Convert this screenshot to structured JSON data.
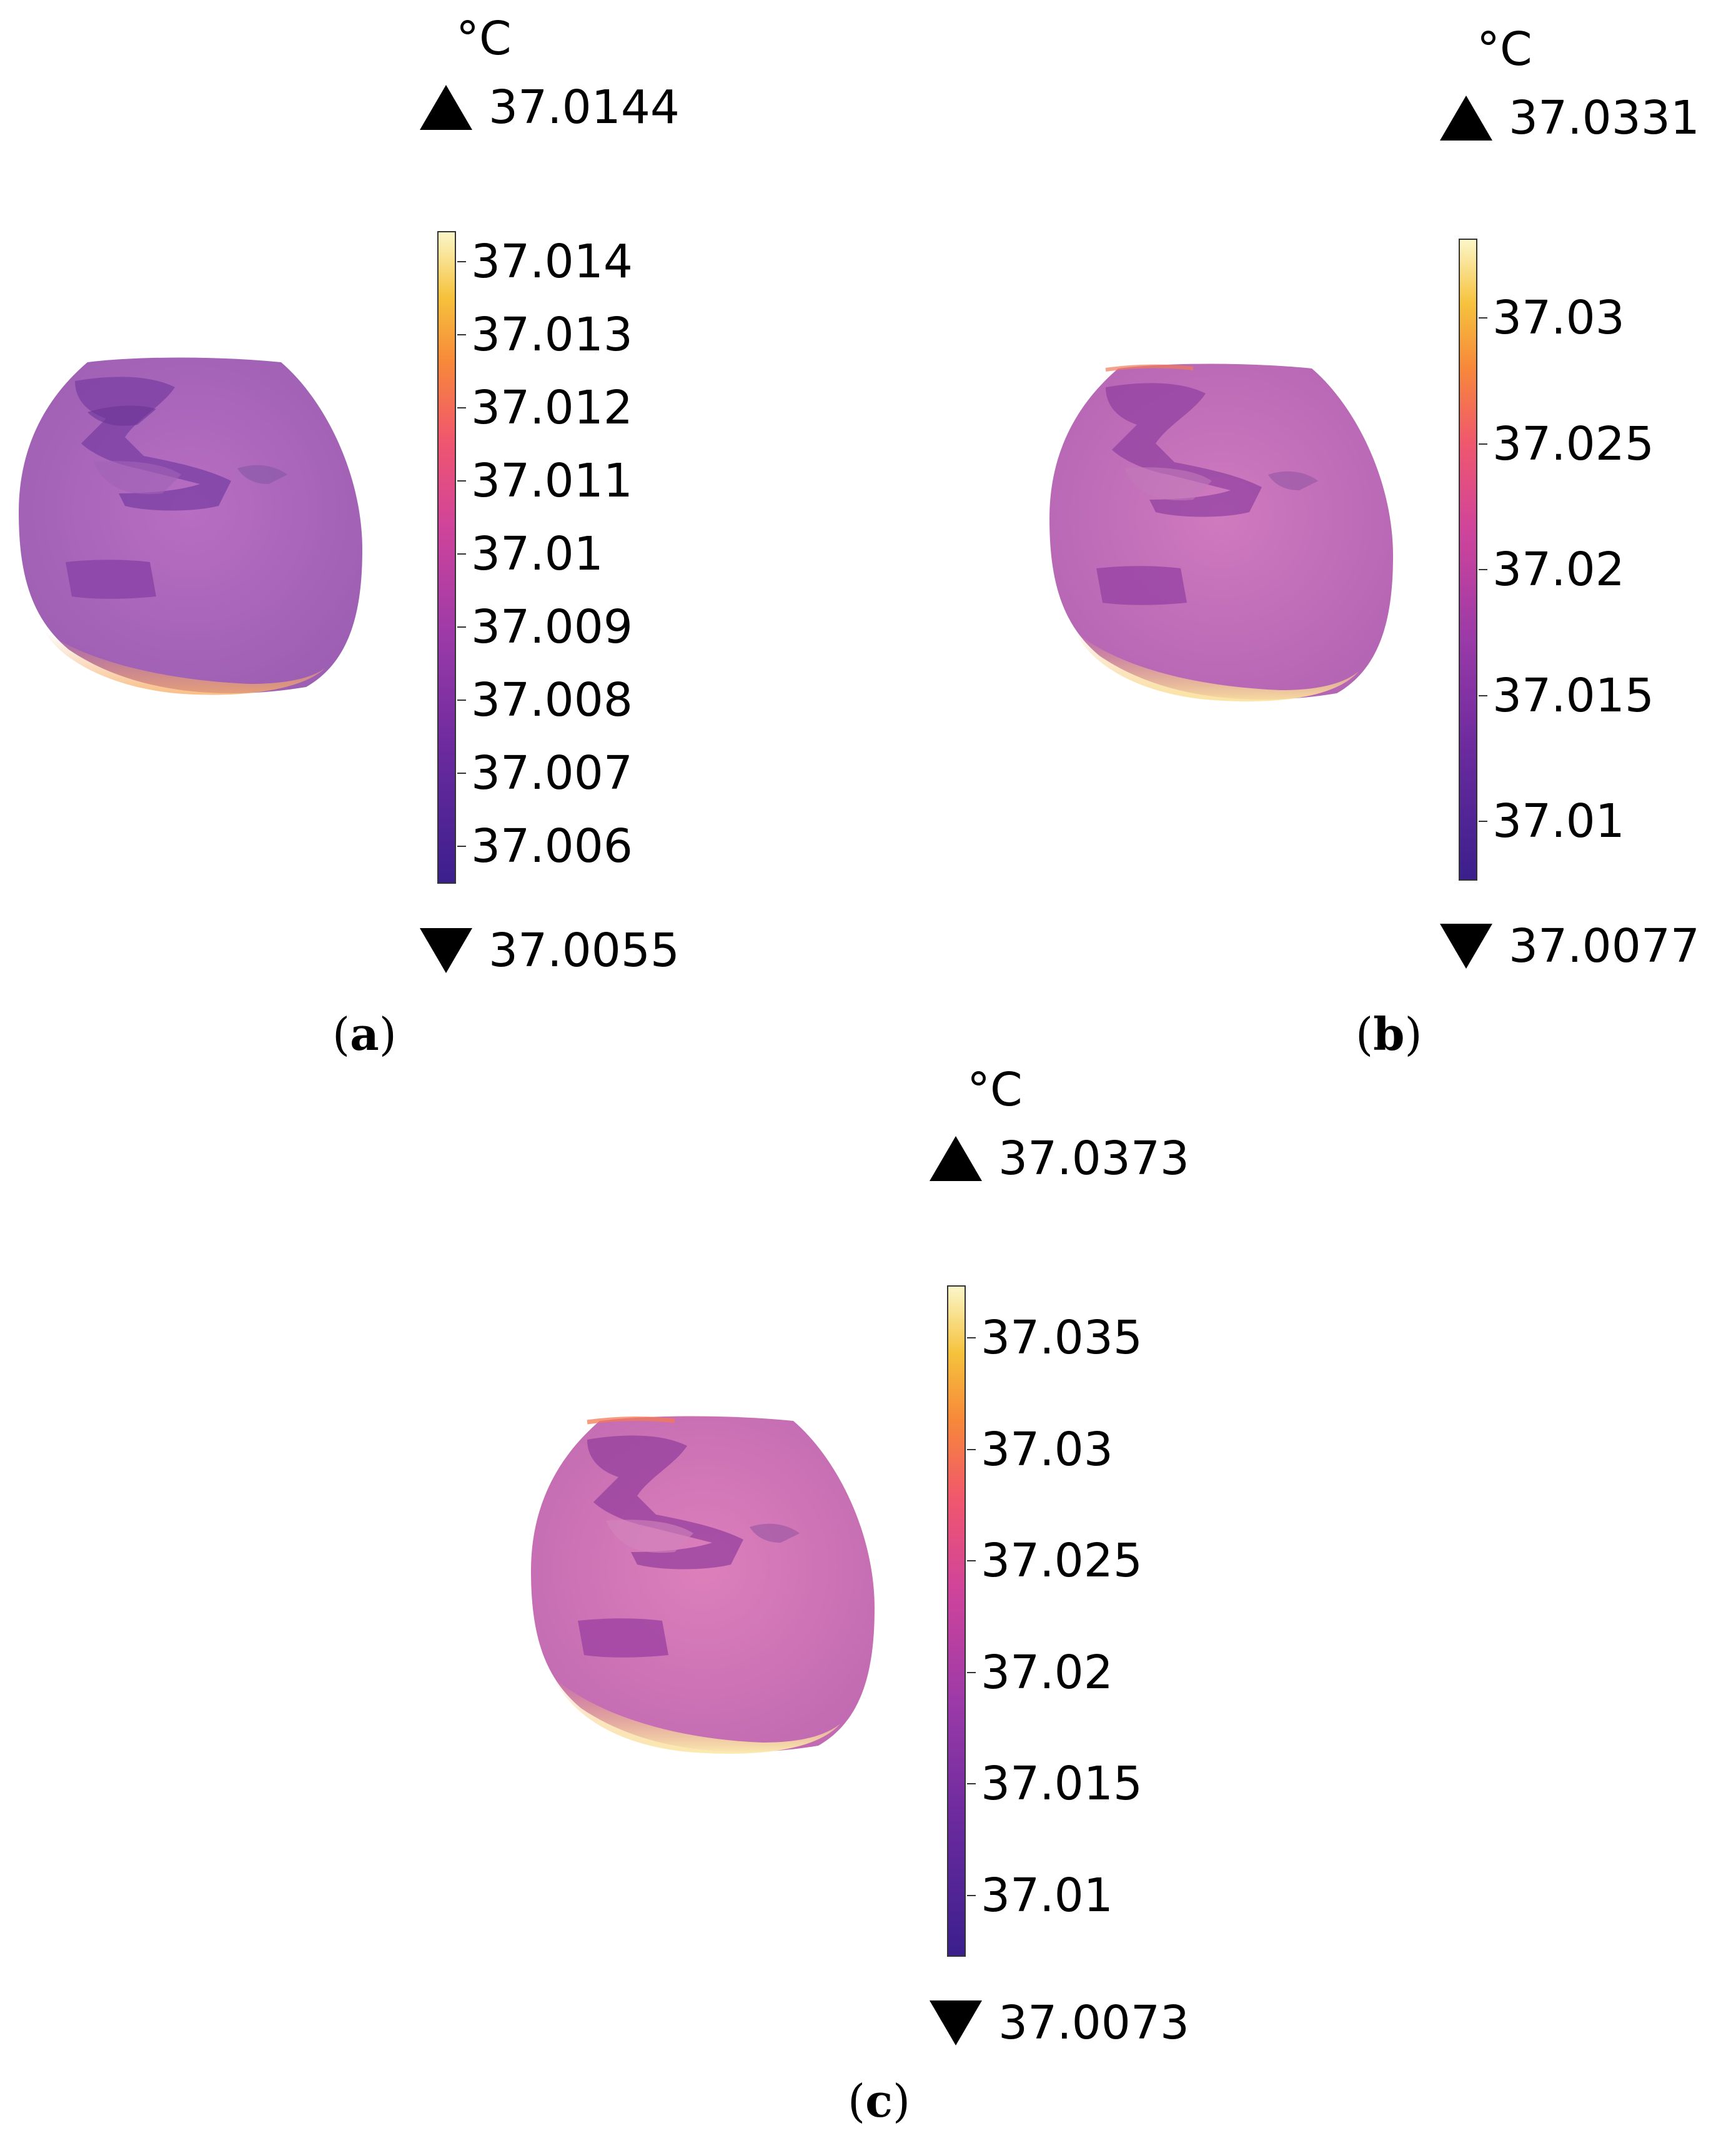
{
  "panels": [
    {
      "id": "a",
      "unit": "°C",
      "max_label": "37.0144",
      "min_label": "37.0055",
      "ticks": [
        "37.014",
        "37.013",
        "37.012",
        "37.011",
        "37.01",
        "37.009",
        "37.008",
        "37.007",
        "37.006"
      ],
      "caption": "a"
    },
    {
      "id": "b",
      "unit": "°C",
      "max_label": "37.0331",
      "min_label": "37.0077",
      "ticks": [
        "37.03",
        "37.025",
        "37.02",
        "37.015",
        "37.01"
      ],
      "caption": "b"
    },
    {
      "id": "c",
      "unit": "°C",
      "max_label": "37.0373",
      "min_label": "37.0073",
      "ticks": [
        "37.035",
        "37.03",
        "37.025",
        "37.02",
        "37.015",
        "37.01"
      ],
      "caption": "c"
    }
  ],
  "colormap": {
    "low": "#3b1f8c",
    "mid": "#d0449a",
    "high": "#fbf6c8"
  },
  "surface_colors": {
    "a": "#b067bd",
    "b": "#c76fb8",
    "c": "#d375b3"
  }
}
